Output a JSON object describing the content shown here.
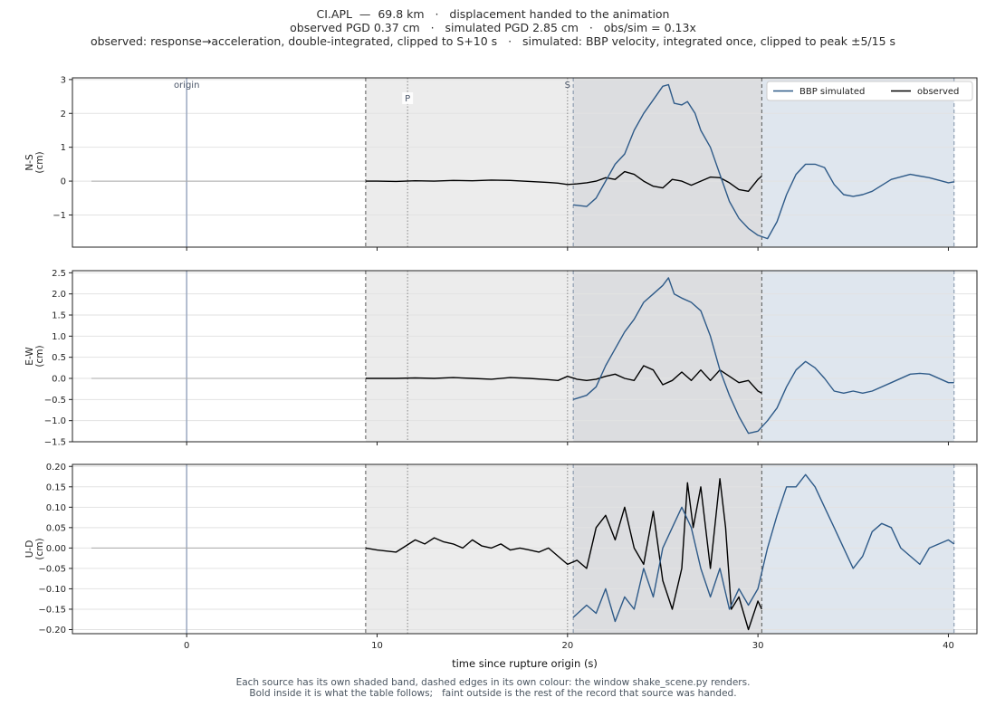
{
  "header": {
    "line1": "CI.APL  —  69.8 km   ·   displacement handed to the animation",
    "line2": "observed PGD 0.37 cm   ·   simulated PGD 2.85 cm   ·   obs/sim = 0.13x",
    "line3": "observed: response→acceleration, double-integrated, clipped to S+10 s   ·   simulated: BBP velocity, integrated once, clipped to peak ±5/15 s"
  },
  "footer": {
    "line1": "Each source has its own shaded band, dashed edges in its own colour: the window shake_scene.py renders.",
    "line2": "Bold inside it is what the table follows;   faint outside is the rest of the record that source was handed."
  },
  "colors": {
    "simulated": "#2e5a88",
    "observed": "#000000",
    "observed_band": "#ececec",
    "simulated_band": "#dfe6ee",
    "overlap_band": "#dcdde0",
    "origin_line": "#9aa8c0",
    "grid": "#e2e2e2"
  },
  "chart_data": {
    "type": "line",
    "xlabel": "time since rupture origin (s)",
    "xlim": [
      -6,
      41.5
    ],
    "xticks": [
      0,
      10,
      20,
      30,
      40
    ],
    "legend": {
      "position": "top-right",
      "entries": [
        "BBP simulated",
        "observed"
      ]
    },
    "markers": {
      "origin": {
        "t": 0,
        "label": "origin"
      },
      "P": {
        "t": 11.6,
        "label": "P"
      },
      "S": {
        "t": 20.0,
        "label": "S"
      }
    },
    "windows": {
      "observed": [
        9.4,
        30.2
      ],
      "simulated": [
        20.3,
        40.3
      ]
    },
    "panels": [
      {
        "ylabel": "N-S\n(cm)",
        "ylim": [
          -1.95,
          3.05
        ],
        "yticks": [
          -1,
          0,
          1,
          2,
          3
        ],
        "yticklabels": [
          "−1",
          "0",
          "1",
          "2",
          "3"
        ],
        "observed": {
          "t": [
            -5,
            9.4,
            10,
            11,
            12,
            13,
            14,
            15,
            16,
            17,
            18,
            19,
            19.5,
            20,
            20.5,
            21,
            21.5,
            22,
            22.5,
            23,
            23.5,
            24,
            24.5,
            25,
            25.5,
            26,
            26.5,
            27,
            27.5,
            28,
            28.5,
            29,
            29.5,
            30,
            30.2
          ],
          "v": [
            0,
            0,
            0,
            -0.01,
            0.01,
            0.0,
            0.02,
            0.01,
            0.03,
            0.02,
            -0.01,
            -0.04,
            -0.06,
            -0.1,
            -0.08,
            -0.05,
            0.0,
            0.1,
            0.05,
            0.28,
            0.2,
            0.0,
            -0.15,
            -0.2,
            0.05,
            0.0,
            -0.12,
            0.0,
            0.12,
            0.1,
            -0.05,
            -0.25,
            -0.3,
            0.05,
            0.15
          ]
        },
        "simulated": {
          "t": [
            20.3,
            21,
            21.5,
            22,
            22.5,
            23,
            23.5,
            24,
            24.5,
            25,
            25.3,
            25.6,
            26,
            26.3,
            26.7,
            27,
            27.5,
            28,
            28.5,
            29,
            29.5,
            30,
            30.5,
            31,
            31.5,
            32,
            32.5,
            33,
            33.5,
            34,
            34.5,
            35,
            35.5,
            36,
            37,
            38,
            38.5,
            39,
            40,
            40.3
          ],
          "v": [
            -0.7,
            -0.75,
            -0.5,
            0.0,
            0.5,
            0.8,
            1.5,
            2.0,
            2.4,
            2.8,
            2.85,
            2.3,
            2.25,
            2.35,
            2.0,
            1.5,
            1.0,
            0.2,
            -0.6,
            -1.1,
            -1.4,
            -1.6,
            -1.7,
            -1.2,
            -0.4,
            0.2,
            0.5,
            0.5,
            0.4,
            -0.1,
            -0.4,
            -0.45,
            -0.4,
            -0.3,
            0.05,
            0.2,
            0.15,
            0.1,
            -0.05,
            -0.02
          ]
        }
      },
      {
        "ylabel": "E-W\n(cm)",
        "ylim": [
          -1.5,
          2.55
        ],
        "yticks": [
          -1.5,
          -1.0,
          -0.5,
          0.0,
          0.5,
          1.0,
          1.5,
          2.0,
          2.5
        ],
        "yticklabels": [
          "−1.5",
          "−1.0",
          "−0.5",
          "0.0",
          "0.5",
          "1.0",
          "1.5",
          "2.0",
          "2.5"
        ],
        "observed": {
          "t": [
            -5,
            9.4,
            10,
            11,
            12,
            13,
            14,
            15,
            16,
            17,
            18,
            19,
            19.5,
            20,
            20.5,
            21,
            21.5,
            22,
            22.5,
            23,
            23.5,
            24,
            24.5,
            25,
            25.5,
            26,
            26.5,
            27,
            27.5,
            28,
            28.5,
            29,
            29.5,
            30,
            30.2
          ],
          "v": [
            0,
            0,
            0,
            0,
            0.01,
            0.0,
            0.02,
            0.0,
            -0.02,
            0.02,
            0.0,
            -0.03,
            -0.05,
            0.05,
            -0.02,
            -0.05,
            -0.02,
            0.05,
            0.1,
            0.0,
            -0.05,
            0.3,
            0.2,
            -0.15,
            -0.05,
            0.15,
            -0.05,
            0.2,
            -0.05,
            0.2,
            0.05,
            -0.1,
            -0.05,
            -0.3,
            -0.35
          ]
        },
        "simulated": {
          "t": [
            20.3,
            21,
            21.5,
            22,
            22.5,
            23,
            23.5,
            24,
            24.5,
            25,
            25.3,
            25.6,
            26,
            26.5,
            27,
            27.5,
            28,
            28.5,
            29,
            29.5,
            30,
            30.5,
            31,
            31.5,
            32,
            32.5,
            33,
            33.5,
            34,
            34.5,
            35,
            35.5,
            36,
            37,
            38,
            38.5,
            39,
            40,
            40.3
          ],
          "v": [
            -0.5,
            -0.4,
            -0.2,
            0.3,
            0.7,
            1.1,
            1.4,
            1.8,
            2.0,
            2.2,
            2.38,
            2.0,
            1.9,
            1.8,
            1.6,
            1.0,
            0.2,
            -0.4,
            -0.9,
            -1.3,
            -1.25,
            -1.0,
            -0.7,
            -0.2,
            0.2,
            0.4,
            0.25,
            0.0,
            -0.3,
            -0.35,
            -0.3,
            -0.35,
            -0.3,
            -0.1,
            0.1,
            0.12,
            0.1,
            -0.1,
            -0.1
          ]
        }
      },
      {
        "ylabel": "U-D\n(cm)",
        "ylim": [
          -0.21,
          0.205
        ],
        "yticks": [
          -0.2,
          -0.15,
          -0.1,
          -0.05,
          0.0,
          0.05,
          0.1,
          0.15,
          0.2
        ],
        "yticklabels": [
          "−0.20",
          "−0.15",
          "−0.10",
          "−0.05",
          "0.00",
          "0.05",
          "0.10",
          "0.15",
          "0.20"
        ],
        "observed": {
          "t": [
            -5,
            9.4,
            10,
            11,
            11.5,
            12,
            12.5,
            13,
            13.5,
            14,
            14.5,
            15,
            15.5,
            16,
            16.5,
            17,
            17.5,
            18,
            18.5,
            19,
            19.5,
            20,
            20.5,
            21,
            21.5,
            22,
            22.5,
            23,
            23.5,
            24,
            24.5,
            25,
            25.5,
            26,
            26.3,
            26.6,
            27,
            27.5,
            28,
            28.3,
            28.6,
            29,
            29.5,
            30,
            30.2
          ],
          "v": [
            0,
            0,
            -0.005,
            -0.01,
            0.005,
            0.02,
            0.01,
            0.025,
            0.015,
            0.01,
            0.0,
            0.02,
            0.005,
            0.0,
            0.01,
            -0.005,
            0.0,
            -0.005,
            -0.01,
            0.0,
            -0.02,
            -0.04,
            -0.03,
            -0.05,
            0.05,
            0.08,
            0.02,
            0.1,
            0.0,
            -0.04,
            0.09,
            -0.08,
            -0.15,
            -0.05,
            0.16,
            0.05,
            0.15,
            -0.05,
            0.17,
            0.05,
            -0.15,
            -0.12,
            -0.2,
            -0.13,
            -0.15
          ]
        },
        "simulated": {
          "t": [
            20.3,
            21,
            21.5,
            22,
            22.5,
            23,
            23.5,
            24,
            24.5,
            25,
            25.5,
            26,
            26.5,
            27,
            27.5,
            28,
            28.5,
            29,
            29.5,
            30,
            30.5,
            31,
            31.5,
            32,
            32.5,
            33,
            33.5,
            34,
            34.5,
            35,
            35.5,
            36,
            36.5,
            37,
            37.5,
            38,
            38.5,
            39,
            40,
            40.3
          ],
          "v": [
            -0.17,
            -0.14,
            -0.16,
            -0.1,
            -0.18,
            -0.12,
            -0.15,
            -0.05,
            -0.12,
            0.0,
            0.05,
            0.1,
            0.05,
            -0.05,
            -0.12,
            -0.05,
            -0.15,
            -0.1,
            -0.14,
            -0.1,
            0.0,
            0.08,
            0.15,
            0.15,
            0.18,
            0.15,
            0.1,
            0.05,
            0.0,
            -0.05,
            -0.02,
            0.04,
            0.06,
            0.05,
            0.0,
            -0.02,
            -0.04,
            0.0,
            0.02,
            0.01
          ]
        }
      }
    ]
  }
}
